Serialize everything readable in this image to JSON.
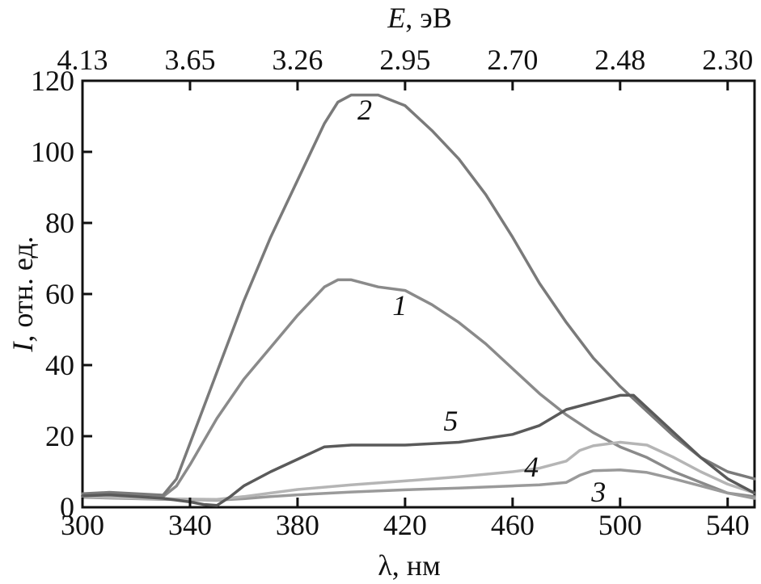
{
  "chart_data": {
    "type": "line",
    "xlabel": "λ, нм",
    "x2label_symbol": "E",
    "x2label_rest": ", эВ",
    "ylabel_symbol": "I",
    "ylabel_rest": ", отн. ед.",
    "xlim": [
      300,
      550
    ],
    "ylim": [
      0,
      120
    ],
    "x_ticks": [
      300,
      340,
      380,
      420,
      460,
      500,
      540
    ],
    "x_tick_labels": [
      "300",
      "340",
      "380",
      "420",
      "460",
      "500",
      "540"
    ],
    "y_ticks": [
      0,
      20,
      40,
      60,
      80,
      100,
      120
    ],
    "y_tick_labels": [
      "0",
      "20",
      "40",
      "60",
      "80",
      "100",
      "120"
    ],
    "top_tick_wavelengths": [
      300,
      340,
      380,
      420,
      460,
      500,
      540
    ],
    "top_tick_labels": [
      "4.13",
      "3.65",
      "3.26",
      "2.95",
      "2.70",
      "2.48",
      "2.30"
    ],
    "grid": false,
    "series": [
      {
        "name": "1",
        "color": "#8a8a8a",
        "label_at": [
          418,
          56
        ],
        "x": [
          300,
          310,
          320,
          330,
          335,
          340,
          350,
          360,
          370,
          380,
          390,
          395,
          400,
          410,
          420,
          430,
          440,
          450,
          460,
          470,
          480,
          490,
          500,
          510,
          520,
          530,
          540,
          550
        ],
        "y": [
          3.2,
          3.5,
          3.2,
          3.0,
          6,
          12,
          25,
          36,
          45,
          54,
          62,
          64,
          64,
          62,
          61,
          57,
          52,
          46,
          39,
          32,
          26,
          21,
          17,
          14,
          10,
          7,
          4,
          3
        ]
      },
      {
        "name": "2",
        "color": "#7a7a7a",
        "label_at": [
          405,
          111
        ],
        "x": [
          300,
          310,
          320,
          330,
          335,
          340,
          350,
          360,
          370,
          380,
          390,
          395,
          400,
          410,
          420,
          430,
          440,
          450,
          460,
          470,
          480,
          490,
          500,
          510,
          520,
          530,
          540,
          550
        ],
        "y": [
          3.8,
          4.2,
          3.8,
          3.4,
          8,
          18,
          38,
          58,
          76,
          92,
          108,
          114,
          116,
          116,
          113,
          106,
          98,
          88,
          76,
          63,
          52,
          42,
          34,
          27,
          20,
          14,
          10,
          8
        ]
      },
      {
        "name": "3",
        "color": "#9a9a9a",
        "label_at": [
          492,
          3.5
        ],
        "x": [
          300,
          310,
          320,
          330,
          340,
          350,
          360,
          370,
          380,
          400,
          420,
          440,
          460,
          470,
          480,
          485,
          490,
          500,
          510,
          520,
          530,
          540,
          550
        ],
        "y": [
          2.8,
          2.6,
          2.4,
          2.2,
          2.1,
          2.0,
          2.4,
          3.0,
          3.5,
          4.3,
          4.9,
          5.4,
          6.0,
          6.3,
          7.0,
          9.0,
          10.3,
          10.5,
          9.8,
          8.0,
          6.0,
          4.0,
          2.5
        ]
      },
      {
        "name": "4",
        "color": "#b5b5b5",
        "label_at": [
          467,
          10.5
        ],
        "x": [
          300,
          310,
          320,
          330,
          340,
          350,
          360,
          370,
          380,
          400,
          420,
          440,
          460,
          470,
          480,
          485,
          490,
          500,
          510,
          520,
          530,
          540,
          550
        ],
        "y": [
          3.0,
          2.8,
          2.6,
          2.4,
          2.3,
          2.2,
          3.0,
          4.0,
          5.0,
          6.3,
          7.4,
          8.6,
          10.0,
          11.0,
          13.0,
          16.0,
          17.3,
          18.3,
          17.5,
          14.0,
          10.0,
          6.5,
          4.0
        ]
      },
      {
        "name": "5",
        "color": "#5a5a5a",
        "label_at": [
          437,
          23.5
        ],
        "x": [
          300,
          310,
          320,
          330,
          340,
          345,
          350,
          355,
          360,
          370,
          380,
          390,
          400,
          420,
          440,
          460,
          470,
          480,
          490,
          500,
          505,
          510,
          520,
          530,
          540,
          550
        ],
        "y": [
          3.2,
          3.5,
          3.0,
          2.5,
          1.5,
          0.8,
          0.5,
          3.0,
          6.0,
          10.0,
          13.5,
          17.0,
          17.5,
          17.5,
          18.3,
          20.5,
          23.0,
          27.5,
          29.5,
          31.5,
          31.5,
          28.0,
          21.0,
          14.0,
          8.0,
          4.0
        ]
      }
    ]
  }
}
